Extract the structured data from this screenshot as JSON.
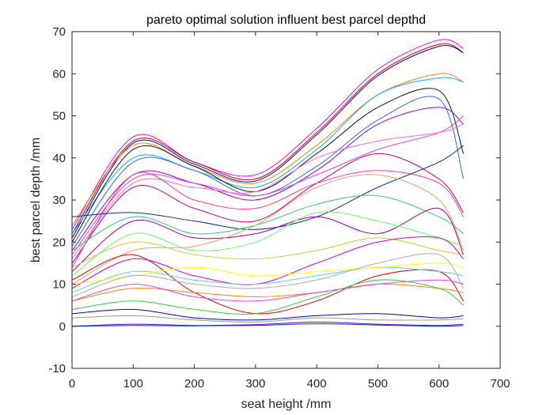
{
  "chart_data": {
    "type": "line",
    "title": "pareto optimal solution influent best parcel depthd",
    "xlabel": "seat height  /mm",
    "ylabel": "best parcel depth  /mm",
    "xlim": [
      0,
      700
    ],
    "ylim": [
      -10,
      70
    ],
    "x_ticks": [
      "0",
      "100",
      "200",
      "300",
      "400",
      "500",
      "600",
      "700"
    ],
    "y_ticks": [
      "-10",
      "0",
      "10",
      "20",
      "30",
      "40",
      "50",
      "60",
      "70"
    ],
    "grid": false,
    "legend": "none",
    "x": [
      0,
      100,
      200,
      300,
      400,
      500,
      600,
      640
    ],
    "series": [
      {
        "color": "#ff00ff",
        "values": [
          23,
          45,
          39,
          36,
          47,
          61,
          68,
          66
        ]
      },
      {
        "color": "#cc0000",
        "values": [
          22,
          44,
          39,
          35,
          46,
          60,
          67,
          65
        ]
      },
      {
        "color": "#0000aa",
        "values": [
          21,
          43.5,
          38.5,
          34.5,
          45.5,
          59.5,
          66.5,
          65
        ]
      },
      {
        "color": "#ff8000",
        "values": [
          24,
          43,
          38,
          34,
          43,
          55,
          60,
          58
        ]
      },
      {
        "color": "#00b0ff",
        "values": [
          22,
          40,
          37,
          33,
          42,
          55,
          59,
          58
        ]
      },
      {
        "color": "#111111",
        "values": [
          20,
          42,
          38,
          32,
          41,
          52,
          56,
          41
        ]
      },
      {
        "color": "#3366ff",
        "values": [
          19,
          39,
          37,
          31,
          38,
          49,
          54,
          35
        ]
      },
      {
        "color": "#9900cc",
        "values": [
          18,
          36,
          34,
          30,
          37,
          48,
          52,
          48
        ]
      },
      {
        "color": "#dd44dd",
        "values": [
          17,
          35,
          34,
          31,
          36,
          42,
          46,
          50
        ]
      },
      {
        "color": "#ff66cc",
        "values": [
          16,
          34,
          33,
          32,
          40,
          44,
          46,
          48
        ]
      },
      {
        "color": "#cc0066",
        "values": [
          15,
          33,
          28,
          25,
          34,
          41,
          35,
          27
        ]
      },
      {
        "color": "#ff3399",
        "values": [
          14,
          36,
          30,
          28,
          34,
          37,
          34,
          26
        ]
      },
      {
        "color": "#003399",
        "values": [
          26,
          27,
          25,
          23,
          26,
          33,
          39,
          43
        ]
      },
      {
        "color": "#33cc66",
        "values": [
          18,
          26,
          22,
          24,
          29,
          31,
          26,
          22
        ]
      },
      {
        "color": "#990099",
        "values": [
          13,
          25,
          21,
          22,
          26,
          22,
          28,
          17
        ]
      },
      {
        "color": "#ff9966",
        "values": [
          10,
          18,
          19,
          24,
          33,
          36,
          30,
          18
        ]
      },
      {
        "color": "#66ff66",
        "values": [
          12,
          22,
          18,
          20,
          27,
          25,
          21,
          19
        ]
      },
      {
        "color": "#cccc33",
        "values": [
          14,
          20,
          17,
          16,
          18,
          21,
          18,
          17
        ]
      },
      {
        "color": "#e60000",
        "values": [
          11,
          17,
          8,
          3,
          6,
          12,
          13,
          6
        ]
      },
      {
        "color": "#cc00cc",
        "values": [
          9,
          16,
          12,
          10,
          15,
          20,
          21,
          16
        ]
      },
      {
        "color": "#66cccc",
        "values": [
          8,
          13,
          11,
          10,
          12,
          14,
          13,
          12
        ]
      },
      {
        "color": "#ffff00",
        "values": [
          10,
          12,
          14,
          12,
          13,
          14,
          15,
          14
        ]
      },
      {
        "color": "#aaaaaa",
        "values": [
          7,
          12,
          10,
          9,
          11,
          15,
          17,
          9
        ]
      },
      {
        "color": "#ff8000",
        "values": [
          6,
          9,
          8,
          7,
          8,
          10,
          9,
          8
        ]
      },
      {
        "color": "#dd44ff",
        "values": [
          6,
          10,
          7,
          6,
          8,
          10,
          11,
          10
        ]
      },
      {
        "color": "#33cc33",
        "values": [
          4,
          6,
          4,
          3,
          7,
          11,
          9,
          5
        ]
      },
      {
        "color": "#0000cc",
        "values": [
          3,
          4,
          2,
          1.5,
          2.5,
          3,
          2,
          2.5
        ]
      },
      {
        "color": "#999999",
        "values": [
          2,
          2.5,
          1.5,
          1,
          2,
          1.5,
          1.5,
          1.8
        ]
      },
      {
        "color": "#6600cc",
        "values": [
          0,
          0.5,
          0.2,
          0.4,
          1,
          0.5,
          0.2,
          0.5
        ]
      },
      {
        "color": "#0033cc",
        "values": [
          0,
          0.2,
          0.1,
          0.2,
          0.6,
          0.3,
          0,
          0.2
        ]
      }
    ]
  }
}
